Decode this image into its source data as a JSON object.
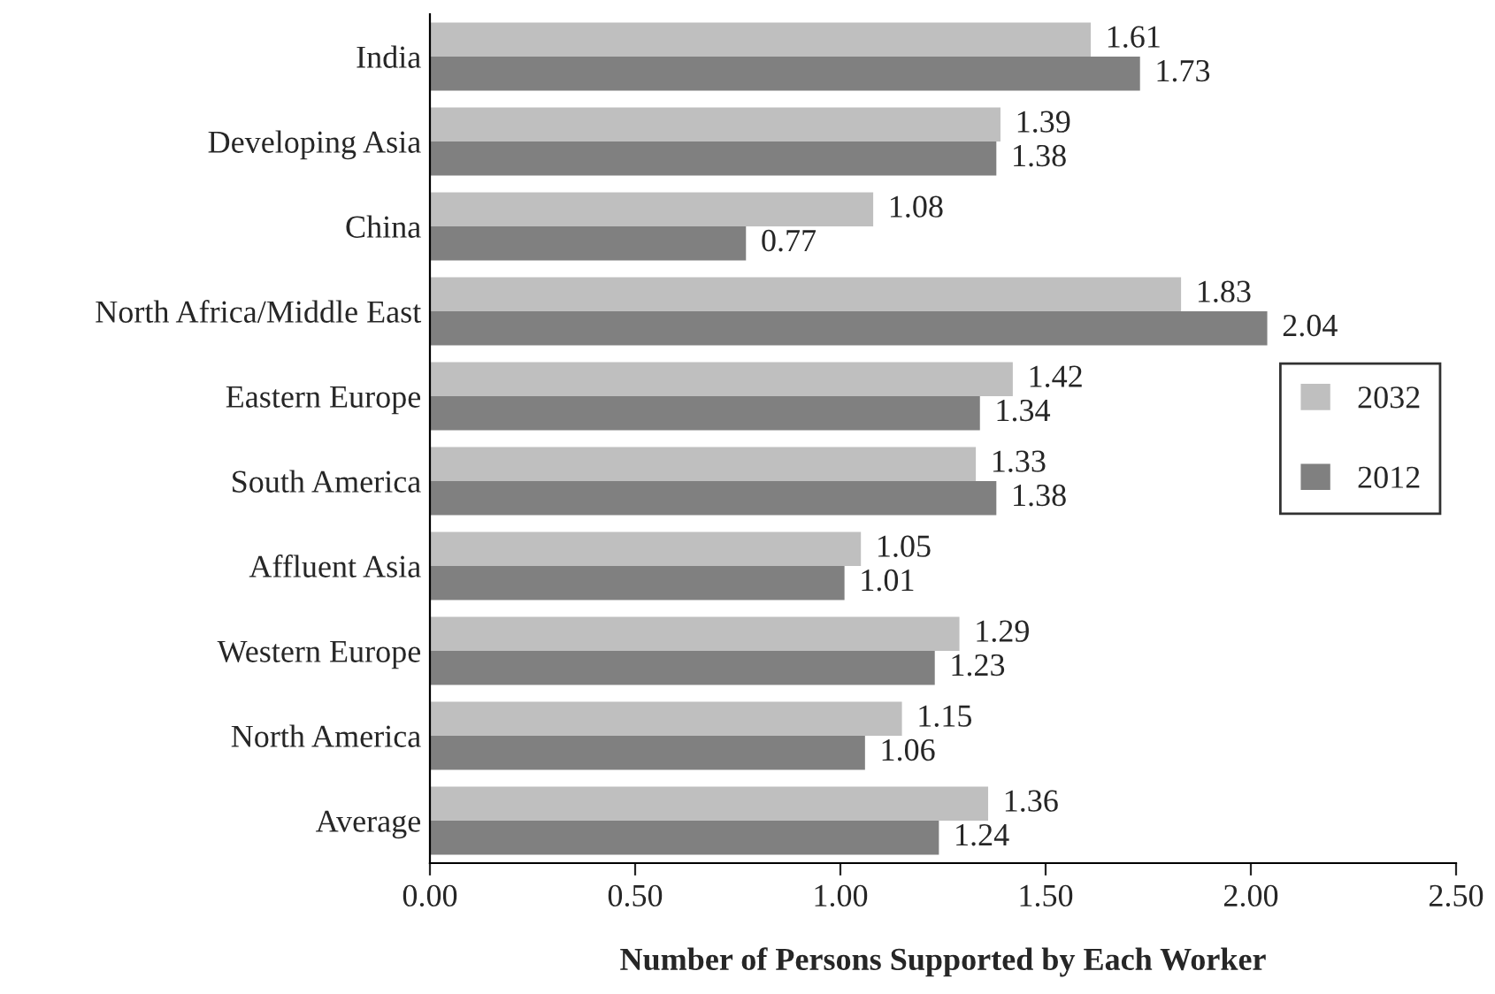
{
  "chart_data": {
    "type": "bar",
    "orientation": "horizontal",
    "xlabel": "Number of Persons Supported by Each Worker",
    "categories": [
      "India",
      "Developing Asia",
      "China",
      "North Africa/Middle East",
      "Eastern Europe",
      "South America",
      "Affluent Asia",
      "Western Europe",
      "North America",
      "Average"
    ],
    "series": [
      {
        "name": "2032",
        "color": "#bfbfbf",
        "values": [
          1.61,
          1.39,
          1.08,
          1.83,
          1.42,
          1.33,
          1.05,
          1.29,
          1.15,
          1.36
        ]
      },
      {
        "name": "2012",
        "color": "#808080",
        "values": [
          1.73,
          1.38,
          0.77,
          2.04,
          1.34,
          1.38,
          1.01,
          1.23,
          1.06,
          1.24
        ]
      }
    ],
    "xlim": [
      0,
      2.5
    ],
    "xticks": [
      {
        "value": 0,
        "label": "0.00"
      },
      {
        "value": 0.5,
        "label": "0.50"
      },
      {
        "value": 1,
        "label": "1.00"
      },
      {
        "value": 1.5,
        "label": "1.50"
      },
      {
        "value": 2,
        "label": "2.00"
      },
      {
        "value": 2.5,
        "label": "2.50"
      }
    ],
    "data_labels": true,
    "legend": "right",
    "grid": false
  }
}
